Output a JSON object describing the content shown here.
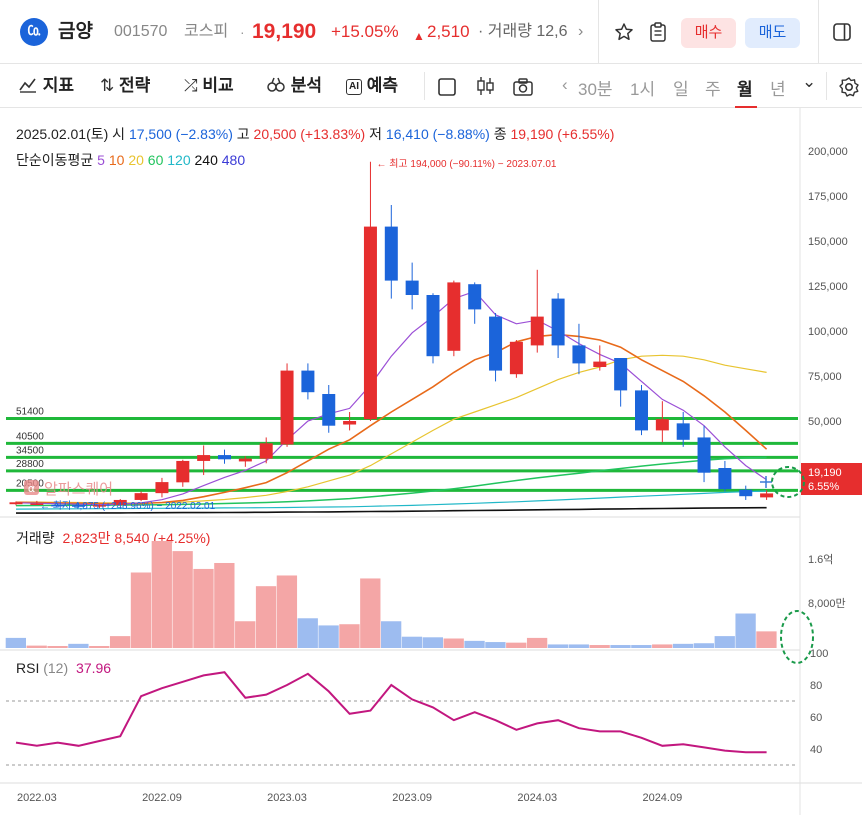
{
  "header": {
    "logo_text": "㏇",
    "name": "금양",
    "code": "001570",
    "market": "코스피",
    "dot": "·",
    "price": "19,190",
    "change_rate": "+15.05%",
    "change_arrow": "▲",
    "change_diff": "2,510",
    "volume_label": "· 거래량 12,6",
    "more": "›",
    "buy_label": "매수",
    "sell_label": "매도",
    "accent_red": "#e62e2e",
    "accent_blue": "#1b64da"
  },
  "toolbar": {
    "indicator_label": "지표",
    "strategy_label": "전략",
    "compare_label": "비교",
    "analysis_label": "분석",
    "predict_label": "예측",
    "ai_icon_text": "AI",
    "periods": [
      "30분",
      "1시",
      "일",
      "주",
      "월",
      "년"
    ],
    "active_period": "월",
    "left_arrow": "‹",
    "dropdown": "⌄"
  },
  "info": {
    "date": "2025.02.01(토)",
    "open_label": "시",
    "open_value": "17,500 (−2.83%)",
    "high_label": "고",
    "high_value": "20,500 (+13.83%)",
    "low_label": "저",
    "low_value": "16,410 (−8.88%)",
    "close_label": "종",
    "close_value": "19,190 (+6.55%)",
    "ma_label": "단순이동평균",
    "ma_periods": [
      "5",
      "10",
      "20",
      "60",
      "120",
      "240",
      "480"
    ],
    "ma_colors": [
      "#9b4fd6",
      "#e86a1a",
      "#e8c430",
      "#22c45e",
      "#22b8c8",
      "#111111",
      "#3b3bd6"
    ]
  },
  "chart_data": [
    {
      "type": "candlestick",
      "x_label_ticks": [
        "2022.03",
        "2022.09",
        "2023.03",
        "2023.09",
        "2024.03",
        "2024.09"
      ],
      "y_ticks": [
        "200,000",
        "175,000",
        "150,000",
        "125,000",
        "100,000",
        "75,000",
        "50,000"
      ],
      "ylim": [
        10000,
        205000
      ],
      "candles": [
        {
          "o": 14600,
          "h": 15800,
          "l": 14100,
          "c": 15400
        },
        {
          "o": 14800,
          "h": 16000,
          "l": 14200,
          "c": 14900
        },
        {
          "o": 14300,
          "h": 15000,
          "l": 13600,
          "c": 14100
        },
        {
          "o": 14200,
          "h": 15200,
          "l": 13300,
          "c": 13500
        },
        {
          "o": 13700,
          "h": 14500,
          "l": 12900,
          "c": 14200
        },
        {
          "o": 14200,
          "h": 16800,
          "l": 13900,
          "c": 16400
        },
        {
          "o": 16400,
          "h": 20000,
          "l": 15900,
          "c": 19300
        },
        {
          "o": 19300,
          "h": 25800,
          "l": 17500,
          "c": 24000
        },
        {
          "o": 23900,
          "h": 33500,
          "l": 22000,
          "c": 33000
        },
        {
          "o": 33000,
          "h": 39600,
          "l": 27000,
          "c": 35500
        },
        {
          "o": 35500,
          "h": 37800,
          "l": 31800,
          "c": 33700
        },
        {
          "o": 32800,
          "h": 35000,
          "l": 30500,
          "c": 34000
        },
        {
          "o": 34000,
          "h": 43000,
          "l": 32000,
          "c": 40500
        },
        {
          "o": 40000,
          "h": 82000,
          "l": 39000,
          "c": 78000
        },
        {
          "o": 78000,
          "h": 82000,
          "l": 62000,
          "c": 66000
        },
        {
          "o": 65000,
          "h": 70000,
          "l": 45000,
          "c": 48000
        },
        {
          "o": 48500,
          "h": 55000,
          "l": 46000,
          "c": 50000
        },
        {
          "o": 51000,
          "h": 194000,
          "l": 50000,
          "c": 158000
        },
        {
          "o": 158000,
          "h": 170000,
          "l": 118000,
          "c": 128000
        },
        {
          "o": 128000,
          "h": 138000,
          "l": 112000,
          "c": 120000
        },
        {
          "o": 120000,
          "h": 121000,
          "l": 82000,
          "c": 86000
        },
        {
          "o": 89000,
          "h": 128000,
          "l": 86000,
          "c": 127000
        },
        {
          "o": 126000,
          "h": 127000,
          "l": 104000,
          "c": 112000
        },
        {
          "o": 108000,
          "h": 110000,
          "l": 72000,
          "c": 78000
        },
        {
          "o": 76000,
          "h": 95000,
          "l": 74000,
          "c": 94000
        },
        {
          "o": 92000,
          "h": 134000,
          "l": 88000,
          "c": 108000
        },
        {
          "o": 118000,
          "h": 121000,
          "l": 85000,
          "c": 92000
        },
        {
          "o": 92000,
          "h": 104000,
          "l": 76000,
          "c": 82000
        },
        {
          "o": 80000,
          "h": 92000,
          "l": 78000,
          "c": 83000
        },
        {
          "o": 85000,
          "h": 85000,
          "l": 58000,
          "c": 67000
        },
        {
          "o": 67000,
          "h": 70000,
          "l": 44000,
          "c": 46000
        },
        {
          "o": 46000,
          "h": 61000,
          "l": 41000,
          "c": 51000
        },
        {
          "o": 49000,
          "h": 55000,
          "l": 39000,
          "c": 42000
        },
        {
          "o": 43000,
          "h": 48000,
          "l": 24000,
          "c": 28000
        },
        {
          "o": 30000,
          "h": 33000,
          "l": 20000,
          "c": 21000
        },
        {
          "o": 20800,
          "h": 22500,
          "l": 16400,
          "c": 18000
        },
        {
          "o": 17500,
          "h": 20500,
          "l": 16410,
          "c": 19190
        }
      ],
      "ma5": [
        15200,
        15000,
        14800,
        14600,
        14400,
        14600,
        15200,
        16500,
        19000,
        22500,
        26000,
        29000,
        33000,
        42000,
        50000,
        54000,
        57000,
        70000,
        86000,
        99000,
        108000,
        118000,
        122000,
        109000,
        104000,
        106000,
        100000,
        93000,
        87000,
        82000,
        72000,
        62000,
        56000,
        48000,
        39000,
        31000,
        25000
      ],
      "ma10": [
        15400,
        15300,
        15100,
        15000,
        14900,
        14800,
        14900,
        15300,
        16200,
        17800,
        19600,
        21600,
        23800,
        28000,
        33000,
        38000,
        42000,
        48000,
        55000,
        62000,
        69000,
        77000,
        84000,
        88000,
        94000,
        97000,
        98000,
        97000,
        95000,
        91000,
        84000,
        78000,
        72000,
        64000,
        55000,
        46000,
        38000
      ],
      "ma20": [
        15500,
        15500,
        15400,
        15300,
        15200,
        15100,
        15100,
        15200,
        15500,
        16000,
        16600,
        17400,
        18400,
        20000,
        22000,
        24500,
        27000,
        31000,
        36000,
        41000,
        46000,
        51000,
        55000,
        59000,
        63000,
        68000,
        73000,
        77000,
        80000,
        84000,
        86000,
        86500,
        86000,
        84000,
        81000,
        79000,
        77000
      ],
      "ma60": [
        14000,
        14050,
        14100,
        14150,
        14200,
        14250,
        14300,
        14400,
        14500,
        14700,
        14900,
        15100,
        15300,
        15600,
        16000,
        16500,
        17000,
        17700,
        18500,
        19300,
        20200,
        21200,
        22300,
        23500,
        24700,
        25800,
        26800,
        27800,
        28800,
        29800,
        30800,
        31700,
        32500,
        33300,
        33900,
        34300,
        34500
      ],
      "ma120": [
        12500,
        12550,
        12600,
        12650,
        12700,
        12750,
        12800,
        12850,
        12900,
        12950,
        13000,
        13050,
        13100,
        13200,
        13300,
        13400,
        13500,
        13700,
        13900,
        14100,
        14400,
        14700,
        15000,
        15300,
        15600,
        16000,
        16400,
        16800,
        17200,
        17600,
        18000,
        18400,
        18800,
        19200,
        19600,
        19900,
        20200
      ],
      "ma240": [
        10800,
        10820,
        10840,
        10860,
        10880,
        10900,
        10930,
        10960,
        11000,
        11040,
        11080,
        11120,
        11170,
        11220,
        11280,
        11340,
        11400,
        11470,
        11550,
        11630,
        11720,
        11810,
        11900,
        12000,
        12100,
        12200,
        12300,
        12400,
        12500,
        12600,
        12700,
        12780,
        12860,
        12940,
        13000,
        13060,
        13100
      ],
      "support_lines": [
        51400,
        40500,
        34500,
        28800,
        20500
      ],
      "support_labels": [
        "51400",
        "40500",
        "34500",
        "28800",
        "20500"
      ],
      "high_marker": "최고 194,000 (−90.11%) − 2023.07.01",
      "low_marker": "최저 4,875 (+248.96%) − 2022.02.01",
      "last_price_label": "19,190",
      "last_rate_label": "6.55%",
      "watermark": "알파스퀘어",
      "watermark_icon": "α"
    },
    {
      "type": "bar",
      "name": "거래량",
      "label": "거래량",
      "last_value": "2,823만 8,540 (+4.25%)",
      "y_ticks": [
        "1.6억",
        "8,000만"
      ],
      "ylim": [
        0,
        200000000
      ],
      "values": [
        17000000,
        4000000,
        3000000,
        7000000,
        3000000,
        20000000,
        127000000,
        180000000,
        163000000,
        133000000,
        143000000,
        45000000,
        104000000,
        122000000,
        50000000,
        38000000,
        40000000,
        117000000,
        45000000,
        19000000,
        18000000,
        16000000,
        12000000,
        10000000,
        9000000,
        17000000,
        6000000,
        6000000,
        5000000,
        5000000,
        5000000,
        6000000,
        7000000,
        8000000,
        20000000,
        58000000,
        28000000
      ],
      "up": [
        false,
        true,
        true,
        false,
        true,
        true,
        true,
        true,
        true,
        true,
        true,
        true,
        true,
        true,
        false,
        false,
        true,
        true,
        false,
        false,
        false,
        true,
        false,
        false,
        true,
        true,
        false,
        false,
        true,
        false,
        false,
        true,
        false,
        false,
        false,
        false,
        true
      ]
    },
    {
      "type": "line",
      "name": "RSI",
      "label": "RSI",
      "period": "(12)",
      "last_value": "37.96",
      "y_ticks": [
        "100",
        "80",
        "60",
        "40"
      ],
      "ylim": [
        20,
        100
      ],
      "reference_lines": [
        70,
        30
      ],
      "values": [
        44,
        42,
        44,
        42,
        45,
        48,
        73,
        78,
        82,
        86,
        88,
        72,
        74,
        80,
        87,
        76,
        62,
        64,
        80,
        71,
        66,
        58,
        63,
        58,
        52,
        56,
        58,
        53,
        51,
        51,
        47,
        42,
        43,
        41,
        39,
        38,
        37.96
      ]
    }
  ]
}
